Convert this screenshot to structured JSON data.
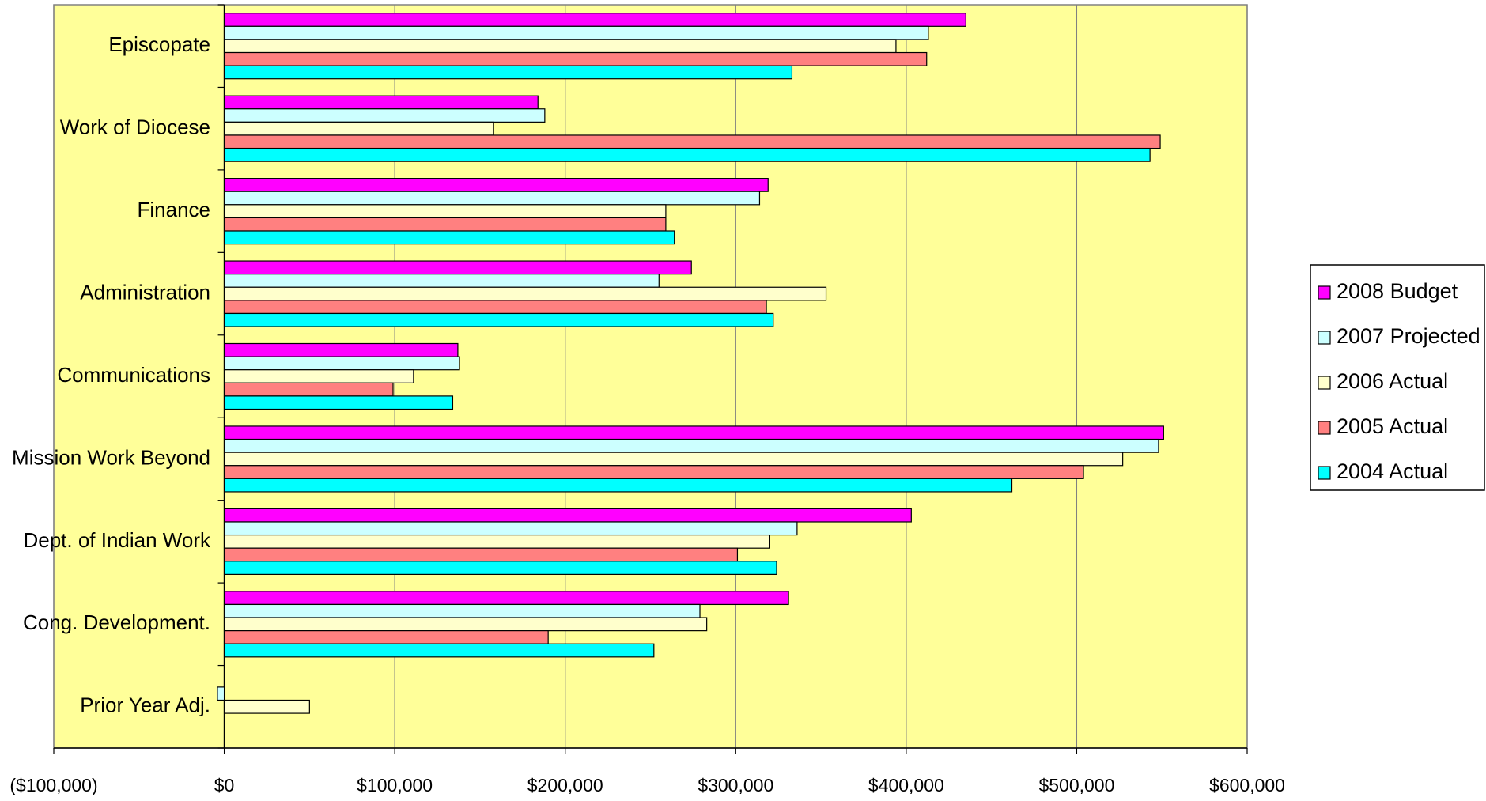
{
  "chart_data": {
    "type": "bar",
    "orientation": "horizontal",
    "categories": [
      "Episcopate",
      "Work of Diocese",
      "Finance",
      "Administration",
      "Communications",
      "Mission Work Beyond",
      "Dept. of Indian Work",
      "Cong. Development.",
      "Prior Year Adj."
    ],
    "series": [
      {
        "name": "2008 Budget",
        "color": "#ff00ff",
        "values": [
          435000,
          184000,
          319000,
          274000,
          137000,
          551000,
          403000,
          331000,
          null
        ]
      },
      {
        "name": "2007 Projected",
        "color": "#ccffff",
        "values": [
          413000,
          188000,
          314000,
          255000,
          138000,
          548000,
          336000,
          279000,
          -4000
        ]
      },
      {
        "name": "2006 Actual",
        "color": "#ffffcc",
        "values": [
          394000,
          158000,
          259000,
          353000,
          111000,
          527000,
          320000,
          283000,
          50000
        ]
      },
      {
        "name": "2005 Actual",
        "color": "#ff8080",
        "values": [
          412000,
          549000,
          259000,
          318000,
          99000,
          504000,
          301000,
          190000,
          null
        ]
      },
      {
        "name": "2004 Actual",
        "color": "#00ffff",
        "values": [
          333000,
          543000,
          264000,
          322000,
          134000,
          462000,
          324000,
          252000,
          null
        ]
      }
    ],
    "xlim": [
      -100000,
      600000
    ],
    "xticks": [
      {
        "value": -100000,
        "label": "($100,000)"
      },
      {
        "value": 0,
        "label": "$0"
      },
      {
        "value": 100000,
        "label": "$100,000"
      },
      {
        "value": 200000,
        "label": "$200,000"
      },
      {
        "value": 300000,
        "label": "$300,000"
      },
      {
        "value": 400000,
        "label": "$400,000"
      },
      {
        "value": 500000,
        "label": "$500,000"
      },
      {
        "value": 600000,
        "label": "$600,000"
      }
    ],
    "grid": true,
    "legend": "right",
    "background": "#ffff99"
  }
}
